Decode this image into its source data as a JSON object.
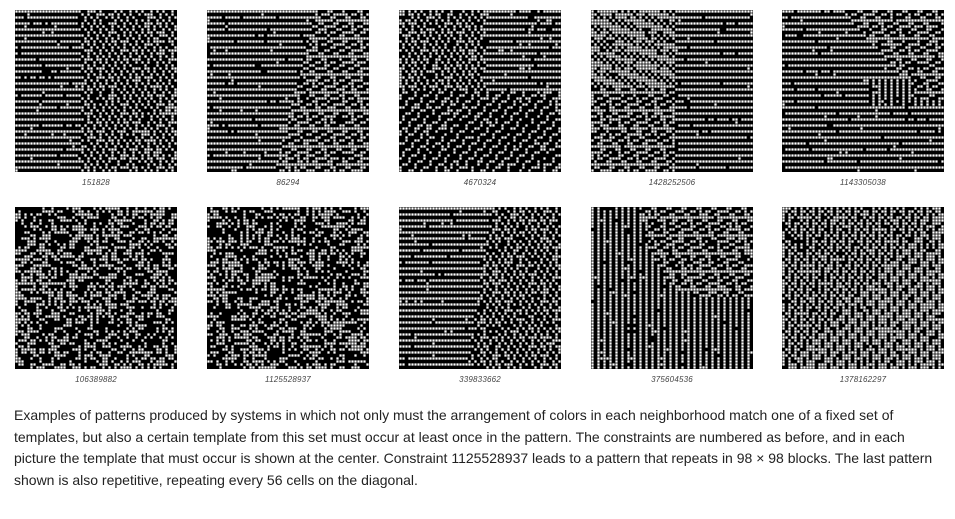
{
  "figure": {
    "panels": [
      {
        "label": "151828",
        "pattern": "stripes-left"
      },
      {
        "label": "86294",
        "pattern": "diag-split"
      },
      {
        "label": "4670324",
        "pattern": "quadrant"
      },
      {
        "label": "1428252506",
        "pattern": "top-left-texture"
      },
      {
        "label": "1143305038",
        "pattern": "top-right-wedge"
      },
      {
        "label": "106389882",
        "pattern": "random"
      },
      {
        "label": "1125528937",
        "pattern": "random"
      },
      {
        "label": "339833662",
        "pattern": "stripes-wedge"
      },
      {
        "label": "375604536",
        "pattern": "vertical-arc"
      },
      {
        "label": "1378162297",
        "pattern": "diagonal"
      }
    ]
  },
  "caption": "Examples of patterns produced by systems in which not only must the arrangement of colors in each neighborhood match one of a fixed set of templates, but also a certain template from this set must occur at least once in the pattern. The constraints are numbered as before, and in each picture the template that must occur is shown at the center. Constraint 1125528937 leads to a pattern that repeats in 98 × 98 blocks. The last pattern shown is also repetitive, repeating every 56 cells on the diagonal.",
  "colors": {
    "black": "#000000",
    "white": "#ffffff"
  }
}
